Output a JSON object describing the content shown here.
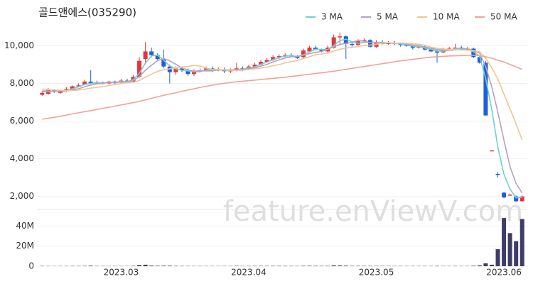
{
  "chart_data": {
    "type": "candlestick",
    "title": "골드앤에스(035290)",
    "watermark": "feature.enViewV.com",
    "legend": "top-right",
    "grid": true,
    "up_color": "#e8323c",
    "down_color": "#1f5fd8",
    "categories": [
      null,
      null,
      null,
      null,
      null,
      null,
      null,
      null,
      null,
      null,
      null,
      null,
      null,
      "2023.03",
      null,
      null,
      null,
      null,
      null,
      null,
      null,
      null,
      null,
      null,
      null,
      null,
      null,
      null,
      null,
      null,
      null,
      null,
      null,
      null,
      "2023.04",
      null,
      null,
      null,
      null,
      null,
      null,
      null,
      null,
      null,
      null,
      null,
      null,
      null,
      null,
      null,
      null,
      null,
      null,
      null,
      null,
      "2023.05",
      null,
      null,
      null,
      null,
      null,
      null,
      null,
      null,
      null,
      null,
      null,
      null,
      null,
      null,
      null,
      null,
      null,
      null,
      null,
      null,
      "2023.06",
      null,
      null,
      null
    ],
    "open": [
      7400,
      7450,
      7650,
      7500,
      7600,
      7700,
      7850,
      7950,
      8100,
      8000,
      8050,
      8000,
      8100,
      8050,
      8150,
      8100,
      8350,
      9300,
      9700,
      9500,
      9300,
      8900,
      8600,
      8800,
      8700,
      8500,
      8650,
      8700,
      8800,
      8700,
      8750,
      8650,
      8700,
      8800,
      8750,
      8900,
      9000,
      9150,
      9250,
      9400,
      9450,
      9500,
      9450,
      9400,
      9700,
      9900,
      9800,
      9700,
      9900,
      10450,
      10500,
      10100,
      10050,
      10250,
      10300,
      9950,
      10200,
      10150,
      10150,
      10100,
      10050,
      10000,
      9900,
      9950,
      9800,
      9700,
      9650,
      9800,
      9850,
      9900,
      9800,
      9850,
      9400,
      9100,
      4450,
      3200,
      2200,
      2100,
      2000,
      1750
    ],
    "high": [
      7600,
      7750,
      7700,
      7650,
      7800,
      7900,
      8000,
      8200,
      8700,
      8150,
      8100,
      8150,
      8150,
      8250,
      8250,
      8450,
      9400,
      10200,
      9900,
      9600,
      9800,
      9000,
      8900,
      8900,
      8800,
      8750,
      8800,
      8900,
      8900,
      8850,
      8850,
      8800,
      9100,
      8900,
      9000,
      9100,
      9250,
      9350,
      9500,
      9550,
      9600,
      9600,
      9500,
      9850,
      10000,
      10000,
      9850,
      10000,
      10600,
      10700,
      10550,
      10200,
      10350,
      10400,
      10350,
      10300,
      10300,
      10250,
      10250,
      10150,
      10150,
      10050,
      10050,
      10050,
      9900,
      9800,
      9900,
      9950,
      10100,
      10000,
      9950,
      9900,
      9500,
      9200,
      4450,
      3300,
      2250,
      2150,
      2050,
      2050
    ],
    "low": [
      7350,
      7400,
      7500,
      7450,
      7550,
      7650,
      7800,
      7900,
      7950,
      7950,
      7950,
      7950,
      7950,
      8000,
      8050,
      8050,
      8300,
      9100,
      9400,
      9200,
      8800,
      8000,
      8450,
      8600,
      8400,
      8400,
      8600,
      8650,
      8600,
      8650,
      8550,
      8550,
      8650,
      8650,
      8700,
      8850,
      8950,
      9100,
      9200,
      9300,
      9400,
      9400,
      9300,
      9350,
      9650,
      9750,
      9650,
      9650,
      9850,
      10100,
      9300,
      9950,
      10000,
      10150,
      9900,
      9900,
      10100,
      10050,
      10050,
      9950,
      9950,
      9800,
      9850,
      9750,
      9650,
      9100,
      9600,
      9750,
      9800,
      9750,
      9750,
      9350,
      9050,
      6300,
      4450,
      3000,
      1900,
      2050,
      1700,
      1700
    ],
    "close": [
      7500,
      7650,
      7550,
      7600,
      7700,
      7850,
      7900,
      8100,
      8000,
      8050,
      8000,
      8100,
      8050,
      8150,
      8100,
      8350,
      9200,
      9700,
      9500,
      9300,
      8900,
      8600,
      8800,
      8700,
      8500,
      8650,
      8700,
      8800,
      8700,
      8750,
      8650,
      8700,
      8800,
      8750,
      8900,
      9000,
      9150,
      9250,
      9400,
      9450,
      9500,
      9450,
      9350,
      9750,
      9900,
      9800,
      9700,
      9900,
      10450,
      10500,
      10100,
      10050,
      10250,
      10300,
      9950,
      10200,
      10150,
      10150,
      10100,
      10050,
      10000,
      9900,
      9950,
      9800,
      9700,
      9650,
      9800,
      9850,
      9900,
      9800,
      9850,
      9400,
      9100,
      6300,
      4450,
      3150,
      1950,
      2100,
      1750,
      2000
    ],
    "ylim": [
      1500,
      11300
    ],
    "yticks": [
      {
        "value": 2000,
        "label": "2,000"
      },
      {
        "value": 4000,
        "label": "4,000"
      },
      {
        "value": 6000,
        "label": "6,000"
      },
      {
        "value": 8000,
        "label": "8,000"
      },
      {
        "value": 10000,
        "label": "10,000"
      }
    ],
    "series": [
      {
        "name": "3 MA",
        "color": "#6fd0cf",
        "values": [
          7550,
          7580,
          7570,
          7600,
          7620,
          7720,
          7820,
          7950,
          8000,
          8050,
          8020,
          8050,
          8050,
          8100,
          8100,
          8200,
          8550,
          9080,
          9470,
          9500,
          9230,
          8930,
          8770,
          8700,
          8670,
          8620,
          8620,
          8720,
          8730,
          8750,
          8700,
          8700,
          8720,
          8750,
          8820,
          8880,
          9020,
          9130,
          9270,
          9370,
          9450,
          9470,
          9430,
          9520,
          9670,
          9820,
          9800,
          9800,
          10020,
          10280,
          10350,
          10220,
          10130,
          10200,
          10170,
          10150,
          10100,
          10170,
          10130,
          10100,
          10050,
          9980,
          9950,
          9880,
          9820,
          9720,
          9720,
          9770,
          9850,
          9850,
          9850,
          9680,
          9450,
          8270,
          6620,
          4630,
          3180,
          2400,
          1930,
          1950
        ]
      },
      {
        "name": "5 MA",
        "color": "#b7a0c4",
        "values": [
          7600,
          7600,
          7580,
          7580,
          7600,
          7670,
          7720,
          7830,
          7910,
          7980,
          8010,
          8050,
          8040,
          8080,
          8080,
          8150,
          8370,
          8700,
          8970,
          9210,
          9320,
          9200,
          9020,
          8820,
          8720,
          8650,
          8670,
          8670,
          8670,
          8720,
          8720,
          8720,
          8720,
          8730,
          8760,
          8830,
          8920,
          9010,
          9140,
          9250,
          9350,
          9410,
          9430,
          9500,
          9590,
          9650,
          9700,
          9810,
          9950,
          10070,
          10130,
          10190,
          10280,
          10240,
          10170,
          10160,
          10170,
          10150,
          10120,
          10130,
          10090,
          10040,
          10000,
          9940,
          9870,
          9800,
          9780,
          9760,
          9780,
          9800,
          9840,
          9750,
          9610,
          8890,
          7820,
          6480,
          4990,
          3590,
          2690,
          2190
        ]
      },
      {
        "name": "10 MA",
        "color": "#f3c590",
        "values": [
          7700,
          7680,
          7650,
          7640,
          7620,
          7630,
          7650,
          7700,
          7750,
          7790,
          7830,
          7890,
          7940,
          8000,
          8040,
          8060,
          8160,
          8330,
          8500,
          8640,
          8730,
          8780,
          8820,
          8880,
          8900,
          8960,
          8920,
          8820,
          8750,
          8740,
          8720,
          8700,
          8700,
          8700,
          8740,
          8770,
          8820,
          8870,
          8940,
          9000,
          9090,
          9160,
          9220,
          9320,
          9420,
          9520,
          9560,
          9610,
          9720,
          9820,
          9880,
          9920,
          9960,
          10020,
          10040,
          10080,
          10150,
          10170,
          10130,
          10150,
          10130,
          10100,
          10080,
          10030,
          9920,
          9870,
          9830,
          9800,
          9800,
          9780,
          9770,
          9740,
          9680,
          9340,
          8830,
          8230,
          7440,
          6660,
          5850,
          5010
        ]
      },
      {
        "name": "50 MA",
        "color": "#f3a293",
        "values": [
          6100,
          6150,
          6200,
          6260,
          6320,
          6380,
          6440,
          6500,
          6560,
          6620,
          6680,
          6740,
          6800,
          6860,
          6920,
          6980,
          7050,
          7130,
          7210,
          7290,
          7370,
          7440,
          7510,
          7580,
          7650,
          7720,
          7790,
          7850,
          7910,
          7960,
          8010,
          8050,
          8090,
          8120,
          8150,
          8180,
          8210,
          8240,
          8270,
          8300,
          8330,
          8370,
          8410,
          8450,
          8490,
          8530,
          8570,
          8610,
          8650,
          8700,
          8750,
          8800,
          8850,
          8900,
          8950,
          9000,
          9050,
          9100,
          9150,
          9200,
          9240,
          9280,
          9320,
          9360,
          9400,
          9420,
          9440,
          9460,
          9470,
          9480,
          9490,
          9490,
          9480,
          9420,
          9340,
          9240,
          9140,
          9010,
          8880,
          8750
        ]
      }
    ],
    "volume": {
      "color": "#3d3d68",
      "ylim": [
        0,
        53000000
      ],
      "yticks": [
        0,
        {
          "value": 20000000,
          "label": "20M"
        },
        {
          "value": 40000000,
          "label": "40M"
        }
      ],
      "values": [
        300000,
        250000,
        200000,
        220000,
        260000,
        300000,
        280000,
        350000,
        600000,
        300000,
        220000,
        200000,
        210000,
        230000,
        200000,
        400000,
        1200000,
        1500000,
        700000,
        500000,
        600000,
        550000,
        350000,
        300000,
        280000,
        260000,
        250000,
        240000,
        230000,
        220000,
        250000,
        230000,
        400000,
        260000,
        300000,
        320000,
        350000,
        330000,
        380000,
        360000,
        340000,
        300000,
        280000,
        450000,
        500000,
        420000,
        350000,
        400000,
        900000,
        800000,
        600000,
        400000,
        380000,
        350000,
        330000,
        360000,
        300000,
        280000,
        260000,
        250000,
        240000,
        260000,
        230000,
        250000,
        270000,
        350000,
        260000,
        240000,
        300000,
        250000,
        240000,
        500000,
        900000,
        3000000,
        1500000,
        17000000,
        48000000,
        33000000,
        25000000,
        47000000
      ]
    }
  }
}
